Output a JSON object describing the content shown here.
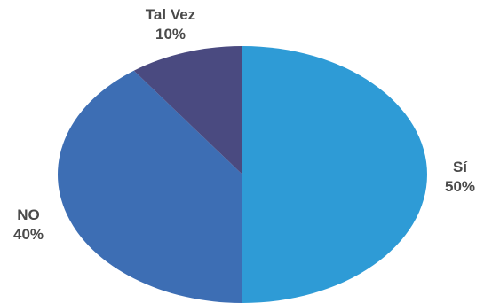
{
  "chart_data": {
    "type": "pie",
    "title": "",
    "slices": [
      {
        "label": "Sí",
        "value": 50,
        "value_label": "50%",
        "color": "#2e9bd6"
      },
      {
        "label": "NO",
        "value": 40,
        "value_label": "40%",
        "color": "#3d6eb4"
      },
      {
        "label": "Tal Vez",
        "value": 10,
        "value_label": "10%",
        "color": "#4a4a80"
      }
    ],
    "legend": "none",
    "label_color": "#4a4a4a"
  }
}
